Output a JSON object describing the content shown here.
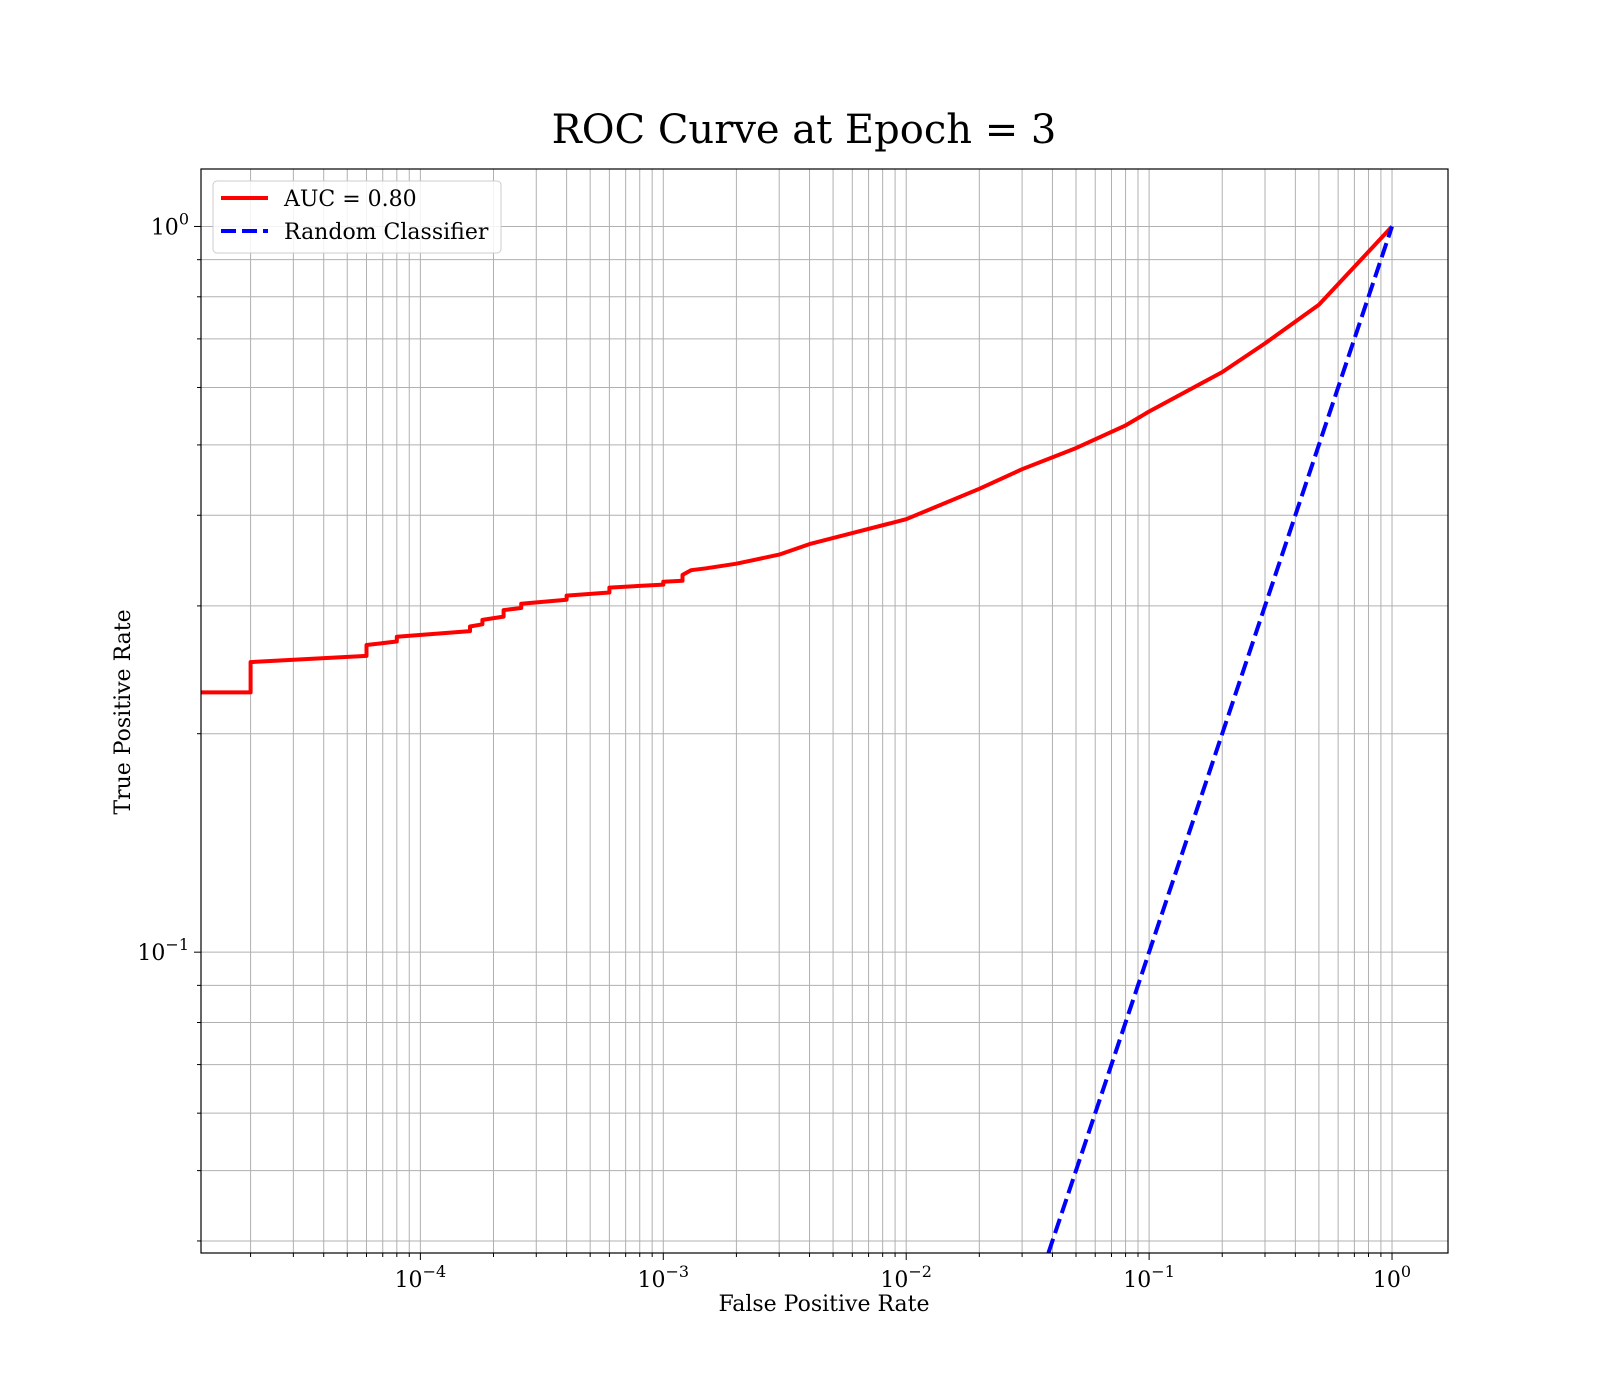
{
  "chart_data": {
    "type": "line",
    "title": "ROC Curve at Epoch = 3",
    "xlabel": "False Positive Rate",
    "ylabel": "True Positive Rate",
    "xscale": "log",
    "yscale": "log",
    "xlim": [
      1.25e-05,
      1.7
    ],
    "ylim": [
      0.0385,
      1.2
    ],
    "grid": true,
    "grid_which": "both",
    "legend_position": "upper left",
    "x_ticks": [
      {
        "value": 0.0001,
        "base": "10",
        "exp": "−4"
      },
      {
        "value": 0.001,
        "base": "10",
        "exp": "−3"
      },
      {
        "value": 0.01,
        "base": "10",
        "exp": "−2"
      },
      {
        "value": 0.1,
        "base": "10",
        "exp": "−1"
      },
      {
        "value": 1,
        "base": "10",
        "exp": "0"
      }
    ],
    "y_ticks": [
      {
        "value": 0.1,
        "base": "10",
        "exp": "−1"
      },
      {
        "value": 1,
        "base": "10",
        "exp": "0"
      }
    ],
    "series": [
      {
        "name": "AUC = 0.80",
        "color": "#ff0000",
        "style": "solid",
        "x": [
          1.25e-05,
          2e-05,
          2e-05,
          6e-05,
          6e-05,
          8e-05,
          8e-05,
          0.00016,
          0.00016,
          0.00018,
          0.00018,
          0.00022,
          0.00022,
          0.00026,
          0.00026,
          0.0004,
          0.0004,
          0.0006,
          0.0006,
          0.001,
          0.001,
          0.0012,
          0.0012,
          0.0013,
          0.0015,
          0.002,
          0.003,
          0.004,
          0.006,
          0.01,
          0.02,
          0.03,
          0.05,
          0.08,
          0.1,
          0.2,
          0.3,
          0.5,
          0.7,
          1.0
        ],
        "y": [
          0.228,
          0.228,
          0.251,
          0.256,
          0.265,
          0.268,
          0.272,
          0.277,
          0.281,
          0.283,
          0.287,
          0.29,
          0.296,
          0.298,
          0.302,
          0.306,
          0.31,
          0.313,
          0.318,
          0.321,
          0.324,
          0.325,
          0.331,
          0.336,
          0.338,
          0.343,
          0.353,
          0.365,
          0.378,
          0.395,
          0.435,
          0.463,
          0.495,
          0.532,
          0.556,
          0.63,
          0.69,
          0.78,
          0.88,
          1.0
        ]
      },
      {
        "name": "Random Classifier",
        "color": "#0000ff",
        "style": "dashed",
        "x": [
          0.0385,
          1.0
        ],
        "y": [
          0.0385,
          1.0
        ]
      }
    ]
  }
}
